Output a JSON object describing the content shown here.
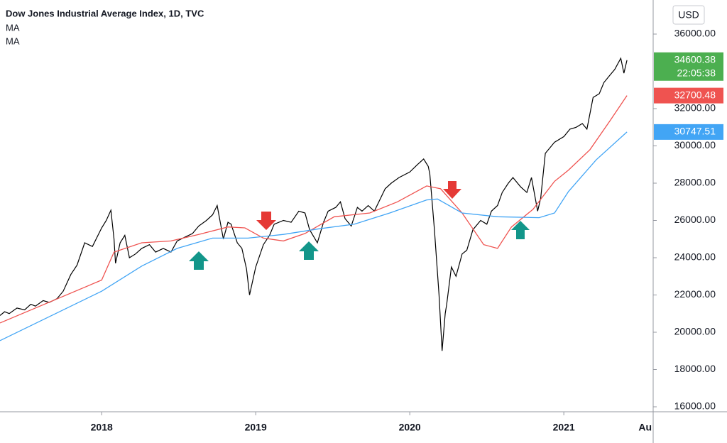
{
  "chart_data": {
    "type": "line",
    "title": "Dow Jones Industrial Average Index, 1D, TVC",
    "currency": "USD",
    "xlim": [
      2017.34,
      2021.58
    ],
    "ylim": [
      15733,
      37829
    ],
    "xticks": [
      2018,
      2019,
      2020,
      2021,
      {
        "value": 2021.58,
        "label": "Au"
      }
    ],
    "yticks": [
      {
        "value": 16000,
        "label": "16000.00"
      },
      {
        "value": 18000,
        "label": "18000.00"
      },
      {
        "value": 20000,
        "label": "20000.00"
      },
      {
        "value": 22000,
        "label": "22000.00"
      },
      {
        "value": 24000,
        "label": "24000.00"
      },
      {
        "value": 26000,
        "label": "26000.00"
      },
      {
        "value": 28000,
        "label": "28000.00"
      },
      {
        "value": 30000,
        "label": "30000.00"
      },
      {
        "value": 32000,
        "label": "32000.00"
      },
      {
        "value": 36000,
        "label": "36000.00"
      }
    ],
    "series": [
      {
        "color": "#000000",
        "tag_color": "#4caf50",
        "last_value": 34600.38,
        "countdown": "22:05:38",
        "x": [
          2017.34,
          2017.37,
          2017.4,
          2017.45,
          2017.5,
          2017.54,
          2017.57,
          2017.62,
          2017.66,
          2017.71,
          2017.75,
          2017.8,
          2017.84,
          2017.89,
          2017.94,
          2018.0,
          2018.03,
          2018.06,
          2018.08,
          2018.09,
          2018.12,
          2018.15,
          2018.18,
          2018.22,
          2018.26,
          2018.31,
          2018.35,
          2018.4,
          2018.45,
          2018.49,
          2018.54,
          2018.59,
          2018.63,
          2018.68,
          2018.72,
          2018.75,
          2018.79,
          2018.82,
          2018.84,
          2018.88,
          2018.91,
          2018.94,
          2018.96,
          2019.0,
          2019.05,
          2019.09,
          2019.12,
          2019.18,
          2019.23,
          2019.28,
          2019.32,
          2019.35,
          2019.4,
          2019.44,
          2019.47,
          2019.52,
          2019.55,
          2019.58,
          2019.62,
          2019.66,
          2019.69,
          2019.73,
          2019.77,
          2019.84,
          2019.88,
          2019.93,
          2020.0,
          2020.05,
          2020.09,
          2020.12,
          2020.13,
          2020.16,
          2020.19,
          2020.21,
          2020.23,
          2020.24,
          2020.27,
          2020.3,
          2020.34,
          2020.37,
          2020.41,
          2020.46,
          2020.5,
          2020.53,
          2020.57,
          2020.6,
          2020.64,
          2020.67,
          2020.72,
          2020.76,
          2020.79,
          2020.83,
          2020.85,
          2020.88,
          2020.94,
          2021.0,
          2021.04,
          2021.08,
          2021.12,
          2021.15,
          2021.19,
          2021.23,
          2021.26,
          2021.3,
          2021.33,
          2021.37,
          2021.39,
          2021.41
        ],
        "values": [
          20900,
          21100,
          21000,
          21300,
          21200,
          21500,
          21400,
          21700,
          21600,
          21800,
          22200,
          23100,
          23600,
          24800,
          24600,
          25600,
          26000,
          26550,
          25000,
          23700,
          24800,
          25200,
          24000,
          24200,
          24500,
          24700,
          24300,
          24500,
          24300,
          24900,
          25100,
          25300,
          25700,
          26000,
          26300,
          26800,
          25000,
          25900,
          25800,
          24800,
          24500,
          23400,
          22000,
          23500,
          24700,
          25200,
          25800,
          26000,
          25900,
          26500,
          26400,
          25500,
          24800,
          25900,
          26500,
          26700,
          27000,
          26100,
          25700,
          26700,
          26500,
          26800,
          26500,
          27700,
          28000,
          28300,
          28600,
          29000,
          29300,
          28900,
          28500,
          25500,
          22000,
          19000,
          21000,
          21500,
          23500,
          23000,
          24200,
          24400,
          25500,
          26000,
          25800,
          26500,
          26800,
          27500,
          28000,
          28300,
          27800,
          27500,
          28300,
          26500,
          27200,
          29600,
          30200,
          30500,
          30900,
          31000,
          31200,
          30900,
          32600,
          32800,
          33400,
          33800,
          34100,
          34700,
          33900,
          34600
        ]
      },
      {
        "name": "MA",
        "color": "#ef5350",
        "last_value": 32700.48,
        "x": [
          2017.34,
          2018.0,
          2018.08,
          2018.26,
          2018.45,
          2018.63,
          2018.82,
          2018.93,
          2019.05,
          2019.18,
          2019.32,
          2019.51,
          2019.74,
          2019.92,
          2020.11,
          2020.2,
          2020.34,
          2020.48,
          2020.57,
          2020.66,
          2020.8,
          2020.94,
          2021.03,
          2021.17,
          2021.3,
          2021.41
        ],
        "values": [
          20500,
          22800,
          24300,
          24800,
          24900,
          25250,
          25650,
          25600,
          25050,
          24900,
          25300,
          26200,
          26400,
          27000,
          27850,
          27700,
          26400,
          24700,
          24500,
          25650,
          26600,
          28100,
          28700,
          29800,
          31350,
          32700.48
        ]
      },
      {
        "name": "MA",
        "color": "#42a5f5",
        "last_value": 30747.51,
        "x": [
          2017.34,
          2018.0,
          2018.26,
          2018.49,
          2018.72,
          2018.95,
          2019.18,
          2019.41,
          2019.64,
          2019.87,
          2020.11,
          2020.18,
          2020.34,
          2020.57,
          2020.84,
          2020.94,
          2021.03,
          2021.21,
          2021.41
        ],
        "values": [
          19550,
          22200,
          23550,
          24500,
          25050,
          25050,
          25250,
          25550,
          25800,
          26400,
          27100,
          27150,
          26400,
          26200,
          26150,
          26400,
          27550,
          29250,
          30747.51
        ]
      }
    ]
  }
}
